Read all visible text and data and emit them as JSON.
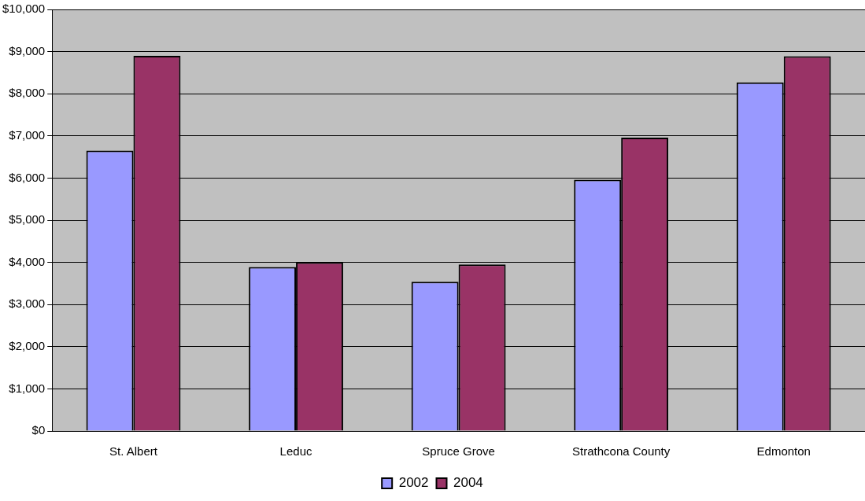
{
  "chart_data": {
    "type": "bar",
    "categories": [
      "St. Albert",
      "Leduc",
      "Spruce Grove",
      "Strathcona County",
      "Edmonton"
    ],
    "series": [
      {
        "name": "2002",
        "color": "#9999ff",
        "values": [
          6650,
          3890,
          3540,
          5960,
          8270
        ]
      },
      {
        "name": "2004",
        "color": "#993366",
        "values": [
          8900,
          4000,
          3950,
          6960,
          8890
        ]
      }
    ],
    "ylim": [
      0,
      10000
    ],
    "yticks": [
      {
        "value": 0,
        "label": "$0"
      },
      {
        "value": 1000,
        "label": "$1,000"
      },
      {
        "value": 2000,
        "label": "$2,000"
      },
      {
        "value": 3000,
        "label": "$3,000"
      },
      {
        "value": 4000,
        "label": "$4,000"
      },
      {
        "value": 5000,
        "label": "$5,000"
      },
      {
        "value": 6000,
        "label": "$6,000"
      },
      {
        "value": 7000,
        "label": "$7,000"
      },
      {
        "value": 8000,
        "label": "$8,000"
      },
      {
        "value": 9000,
        "label": "$9,000"
      },
      {
        "value": 10000,
        "label": "$10,000"
      }
    ],
    "grid": "y",
    "legend": "bottom"
  }
}
